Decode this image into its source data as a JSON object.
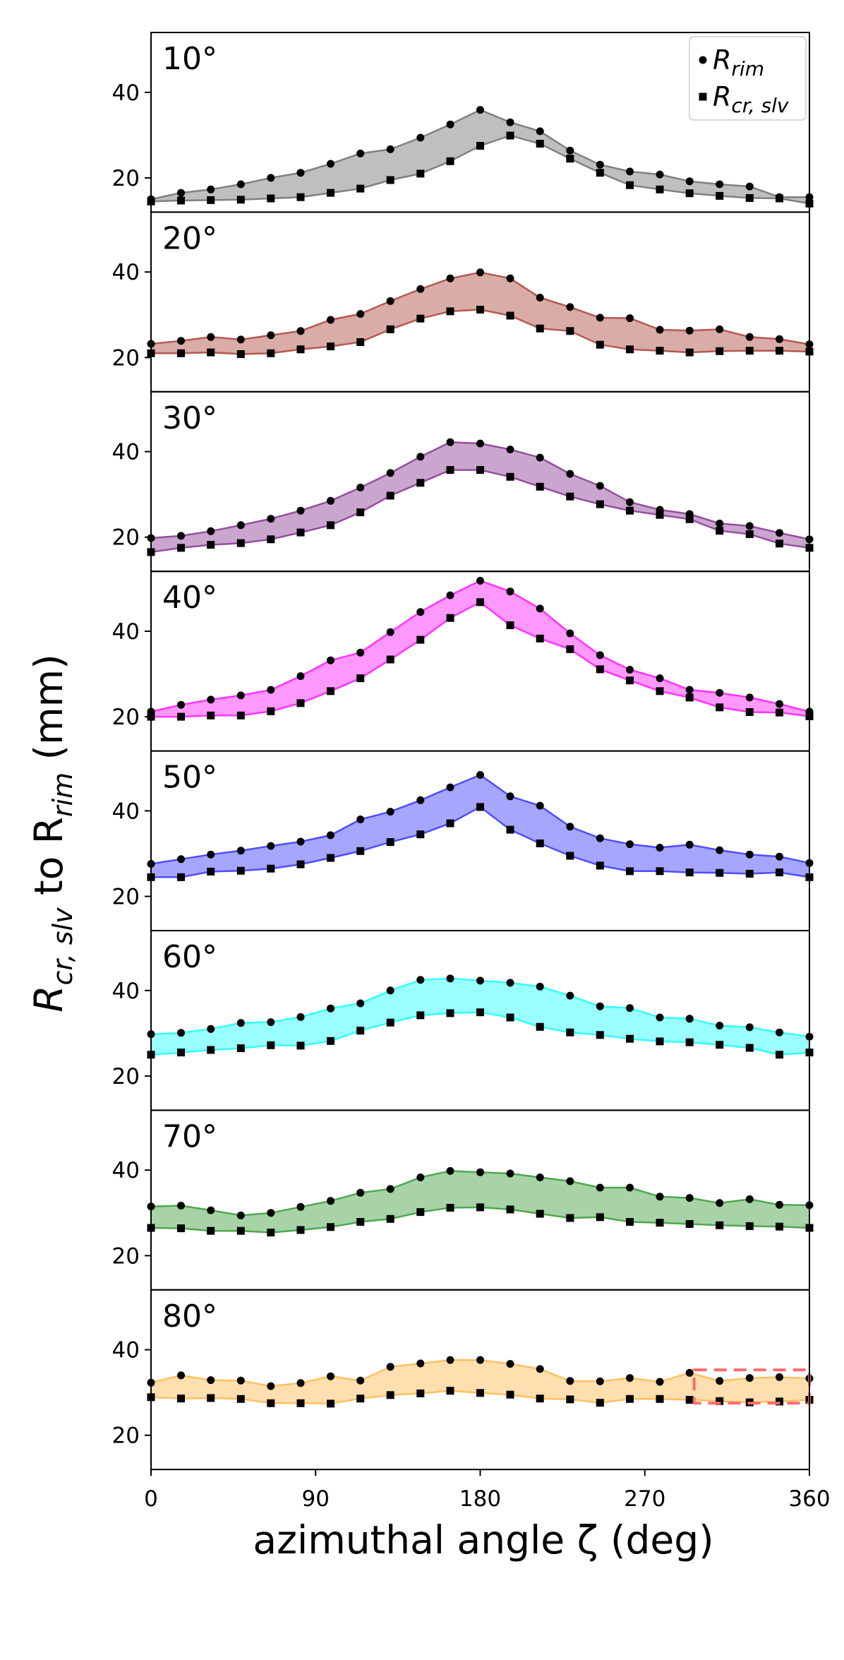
{
  "chart_data": {
    "type": "area",
    "xlabel": "azimuthal angle ζ (deg)",
    "ylabel": {
      "prefix": "R",
      "sub1": "cr, slv",
      "middle": " to R",
      "sub2": "rim",
      "suffix": " (mm)"
    },
    "xlim": [
      0,
      360
    ],
    "ylim": [
      12,
      54
    ],
    "xticks": [
      0,
      90,
      180,
      270,
      360
    ],
    "yticks": [
      20,
      40
    ],
    "legend": {
      "position": "top-right",
      "entries": [
        {
          "marker": "circle",
          "base": "R",
          "sub": "rim"
        },
        {
          "marker": "square",
          "base": "R",
          "sub": "cr, slv"
        }
      ]
    },
    "x": [
      0,
      16.4,
      32.7,
      49.1,
      65.5,
      81.8,
      98.2,
      114.5,
      130.9,
      147.3,
      163.6,
      180,
      196.4,
      212.7,
      229.1,
      245.5,
      261.8,
      278.2,
      294.5,
      310.9,
      327.3,
      343.6,
      360
    ],
    "panels": [
      {
        "label": "10°",
        "color": "#808080",
        "r_rim": [
          15,
          16.5,
          17.3,
          18.5,
          20,
          21.2,
          23.3,
          25.7,
          26.7,
          29.4,
          32.5,
          35.9,
          33,
          30.9,
          26.4,
          23.1,
          21.5,
          20.8,
          19.2,
          18.5,
          18,
          15.5,
          15.5
        ],
        "r_cr_slv": [
          14.5,
          14.7,
          14.8,
          14.9,
          15.2,
          15.5,
          16.5,
          17.5,
          19.5,
          21,
          23.9,
          27.5,
          29.9,
          28,
          24.5,
          21.2,
          18.3,
          17.3,
          16.4,
          15.8,
          15.3,
          15.2,
          14
        ]
      },
      {
        "label": "20°",
        "color": "#b35950",
        "r_rim": [
          23.2,
          23.9,
          24.8,
          24.2,
          25.2,
          26.2,
          28.8,
          30.2,
          33.2,
          36,
          38.5,
          39.9,
          38.5,
          34,
          31.8,
          29.3,
          29.2,
          26.5,
          26.3,
          26.6,
          24.8,
          24.3,
          23.1
        ],
        "r_cr_slv": [
          21,
          21,
          21.2,
          20.8,
          21,
          21.9,
          22.6,
          23.6,
          26.6,
          29.1,
          30.8,
          31.2,
          29.8,
          26.8,
          26.2,
          23,
          21.9,
          21.6,
          21.2,
          21.5,
          21.6,
          21.6,
          21.4
        ]
      },
      {
        "label": "30°",
        "color": "#954d9e",
        "r_rim": [
          19.8,
          20.3,
          21.4,
          22.8,
          24.3,
          26.2,
          28.5,
          31.6,
          35,
          38.8,
          42.2,
          41.9,
          40.5,
          38.6,
          34.8,
          32,
          28.2,
          26.4,
          25.4,
          23.2,
          22.6,
          21,
          19.5
        ],
        "r_cr_slv": [
          16.5,
          17.5,
          18.2,
          18.6,
          19.5,
          21.1,
          22.8,
          25.8,
          29.7,
          32.7,
          35.7,
          35.7,
          34.1,
          31.8,
          29.5,
          27.7,
          26.2,
          25.2,
          24.2,
          21.5,
          20.7,
          18.5,
          17.5
        ]
      },
      {
        "label": "40°",
        "color": "#ff33ff",
        "r_rim": [
          21.2,
          22.8,
          24,
          25,
          26.3,
          29.5,
          33.2,
          35,
          39.8,
          44.5,
          48.4,
          51.8,
          49.3,
          45.3,
          39.5,
          34.4,
          31,
          29,
          26.3,
          25.6,
          24.5,
          23,
          21.2
        ],
        "r_cr_slv": [
          20,
          20,
          20.3,
          20.3,
          21.3,
          23.2,
          26,
          29,
          33.4,
          38,
          43.1,
          46.8,
          41.4,
          38.3,
          35.8,
          31.1,
          28.5,
          26,
          24.5,
          22.2,
          21.1,
          21,
          20.1
        ]
      },
      {
        "label": "50°",
        "color": "#4d4dff",
        "r_rim": [
          27.6,
          28.7,
          29.8,
          30.7,
          31.8,
          32.8,
          34.3,
          38,
          39.8,
          42.5,
          45.5,
          48.4,
          43.4,
          41.2,
          36.3,
          33.6,
          32.2,
          31.4,
          32.1,
          30.8,
          29.8,
          29.3,
          27.8
        ],
        "r_cr_slv": [
          24.5,
          24.5,
          25.8,
          26,
          26.5,
          27.5,
          29,
          30.6,
          32.7,
          34.5,
          37.1,
          40.9,
          35.6,
          32.4,
          29.5,
          27.2,
          25.9,
          25.9,
          25.6,
          25.5,
          25.3,
          25.6,
          24.5
        ]
      },
      {
        "label": "60°",
        "color": "#33ffff",
        "r_rim": [
          29.8,
          30.1,
          31,
          32.4,
          32.6,
          33.8,
          35.8,
          37,
          40,
          42.5,
          42.8,
          42.3,
          41.8,
          40.9,
          38.8,
          36.3,
          35.9,
          33.7,
          33.4,
          31.8,
          31.4,
          30.2,
          29.2
        ],
        "r_cr_slv": [
          25,
          25.5,
          26.1,
          26.5,
          27.2,
          27.1,
          28.2,
          30.6,
          32.5,
          34.2,
          34.7,
          34.9,
          33.7,
          31.5,
          30.2,
          29.6,
          28.7,
          28.1,
          27.9,
          27.3,
          26.6,
          25,
          25.5
        ]
      },
      {
        "label": "70°",
        "color": "#4fa84f",
        "r_rim": [
          31.5,
          31.7,
          30.6,
          29.4,
          30,
          31.4,
          32.8,
          34.7,
          35.6,
          38.3,
          39.8,
          39.5,
          39.2,
          38.3,
          37.4,
          35.9,
          35.9,
          33.8,
          33.5,
          32.3,
          33.2,
          31.9,
          31.8
        ],
        "r_cr_slv": [
          26.5,
          26.4,
          25.8,
          25.8,
          25.4,
          26,
          26.7,
          27.9,
          28.6,
          30.2,
          31.2,
          31.3,
          30.8,
          29.8,
          28.8,
          29,
          27.9,
          27.7,
          27.4,
          27.1,
          26.9,
          26.8,
          26.5
        ]
      },
      {
        "label": "80°",
        "color": "#ffc060",
        "r_rim": [
          32.3,
          34,
          32.9,
          32.8,
          31.5,
          32.2,
          33.8,
          32.8,
          36,
          36.8,
          37.6,
          37.6,
          36.7,
          35.5,
          32.7,
          32.6,
          33.4,
          32.5,
          34.6,
          32.7,
          33.4,
          33.6,
          33.3
        ],
        "r_cr_slv": [
          28.9,
          28.6,
          28.7,
          28.5,
          27.5,
          27.5,
          27.4,
          28.6,
          29.4,
          29.8,
          30.4,
          29.9,
          29.5,
          28.6,
          28.4,
          27.6,
          28.5,
          28.5,
          28.3,
          28,
          27.7,
          27.9,
          28.3
        ],
        "highlight_box": {
          "x": [
            297,
            360
          ],
          "y": [
            27.5,
            35.3
          ],
          "color": "#ff6b6b",
          "style": "dashed"
        }
      }
    ]
  }
}
